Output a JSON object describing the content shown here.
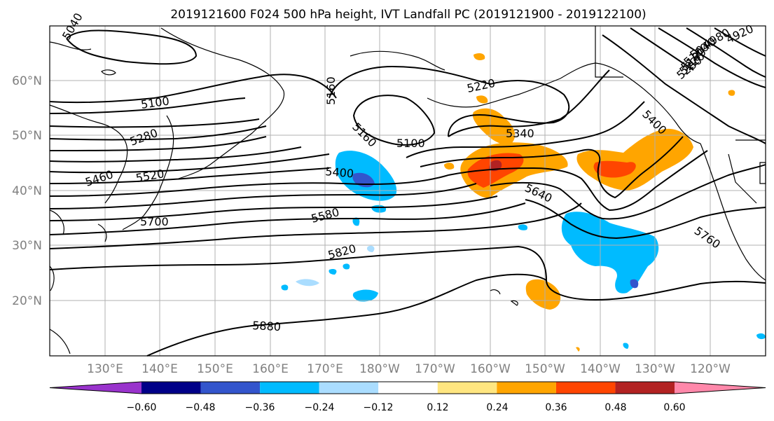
{
  "title": "2019121600 F024 500 hPa height, IVT Landfall PC (2019121900 - 2019122100)",
  "axes": {
    "lon_ticks": [
      "130°E",
      "140°E",
      "150°E",
      "160°E",
      "170°E",
      "180°W",
      "170°W",
      "160°W",
      "150°W",
      "140°W",
      "130°W",
      "120°W"
    ],
    "lat_ticks": [
      "60°N",
      "50°N",
      "40°N",
      "30°N",
      "20°N"
    ]
  },
  "contour_labels": [
    "5100",
    "5160",
    "5220",
    "5160",
    "5100",
    "5280",
    "5340",
    "5400",
    "5460",
    "5520",
    "5400",
    "5580",
    "5640",
    "5700",
    "5820",
    "5760",
    "5880",
    "4920",
    "4980",
    "5040",
    "5100",
    "5160",
    "5220",
    "5280",
    "5040"
  ],
  "colorbar": {
    "colors": [
      "#9933cc",
      "#000088",
      "#3355cc",
      "#00bbff",
      "#aaddff",
      "#ffffff",
      "#ffe680",
      "#ffa500",
      "#ff4500",
      "#b22222",
      "#ff88aa"
    ],
    "tick_labels": [
      "−0.60",
      "−0.48",
      "−0.36",
      "−0.24",
      "−0.12",
      "0.12",
      "0.24",
      "0.36",
      "0.48",
      "0.60"
    ]
  },
  "colors": {
    "orange": "#ffa500",
    "red_orange": "#ff4500",
    "light_blue": "#00bbff",
    "blue": "#3355cc",
    "pale_blue": "#aaddff"
  }
}
